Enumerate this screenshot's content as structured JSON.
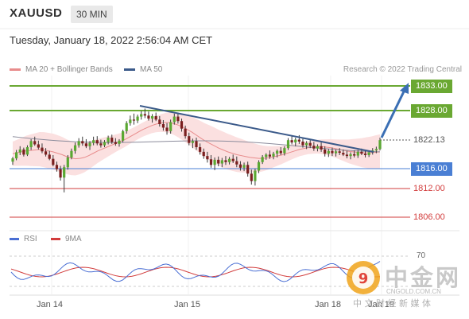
{
  "header": {
    "symbol": "XAUUSD",
    "timeframe": "30 MIN",
    "datetime": "Tuesday, January 18, 2022 2:56:04 AM CET"
  },
  "legend": {
    "ma20": {
      "label": "MA 20 + Bollinger Bands",
      "color": "#e88c8c"
    },
    "ma50": {
      "label": "MA 50",
      "color": "#3b5a8a"
    },
    "copyright": "Research © 2022 Trading Central"
  },
  "levels": [
    {
      "label": "1833.00",
      "value": 1833.0,
      "kind": "resistance",
      "color": "#6aa832"
    },
    {
      "label": "1828.00",
      "value": 1828.0,
      "kind": "resistance",
      "color": "#6aa832"
    },
    {
      "label": "1822.13",
      "value": 1822.13,
      "kind": "current",
      "color": "#555555"
    },
    {
      "label": "1816.00",
      "value": 1816.0,
      "kind": "pivot",
      "color": "#4a7fd4"
    },
    {
      "label": "1812.00",
      "value": 1812.0,
      "kind": "support",
      "color": "#d23c3c"
    },
    {
      "label": "1806.00",
      "value": 1806.0,
      "kind": "support",
      "color": "#d23c3c"
    }
  ],
  "rsi": {
    "rsi_label": "RSI",
    "rsi_color": "#4a6fd4",
    "ma_label": "9MA",
    "ma_color": "#d23c3c",
    "level_label": "70"
  },
  "x_axis": {
    "labels": [
      "Jan 14",
      "Jan 15",
      "Jan 18",
      "Jan 19"
    ]
  },
  "watermark": {
    "brand": "中金网",
    "domain": "CNGOLD.COM.CN",
    "tagline": "中 文 财 经 新 媒 体"
  },
  "chart_data": {
    "type": "candlestick",
    "symbol": "XAUUSD",
    "timeframe": "30 MIN",
    "price_range": [
      1803,
      1836
    ],
    "series_visual": [
      [
        1817.5,
        1818.5,
        1816.8,
        1818.2
      ],
      [
        1818.2,
        1820.0,
        1817.8,
        1819.5
      ],
      [
        1819.5,
        1820.8,
        1818.9,
        1820.1
      ],
      [
        1820.1,
        1820.5,
        1818.6,
        1819.0
      ],
      [
        1819.0,
        1821.0,
        1818.7,
        1820.6
      ],
      [
        1820.6,
        1822.3,
        1820.0,
        1821.9
      ],
      [
        1821.9,
        1822.8,
        1820.9,
        1821.2
      ],
      [
        1821.2,
        1822.0,
        1820.1,
        1820.5
      ],
      [
        1820.5,
        1821.4,
        1819.3,
        1819.7
      ],
      [
        1819.7,
        1820.4,
        1818.6,
        1819.0
      ],
      [
        1819.0,
        1819.8,
        1817.8,
        1818.1
      ],
      [
        1818.1,
        1818.9,
        1816.5,
        1816.8
      ],
      [
        1816.8,
        1817.5,
        1815.4,
        1815.9
      ],
      [
        1815.9,
        1816.6,
        1813.6,
        1814.2
      ],
      [
        1814.2,
        1816.8,
        1811.2,
        1816.3
      ],
      [
        1816.3,
        1818.9,
        1815.8,
        1818.4
      ],
      [
        1818.4,
        1820.3,
        1818.0,
        1819.8
      ],
      [
        1819.8,
        1821.6,
        1819.2,
        1821.0
      ],
      [
        1821.0,
        1822.5,
        1820.5,
        1821.9
      ],
      [
        1821.9,
        1822.8,
        1820.9,
        1821.4
      ],
      [
        1821.4,
        1822.3,
        1820.4,
        1820.8
      ],
      [
        1820.8,
        1821.9,
        1820.0,
        1821.5
      ],
      [
        1821.5,
        1822.8,
        1821.0,
        1822.1
      ],
      [
        1822.1,
        1822.9,
        1821.0,
        1821.4
      ],
      [
        1821.4,
        1822.2,
        1820.5,
        1821.0
      ],
      [
        1821.0,
        1822.1,
        1820.6,
        1821.7
      ],
      [
        1821.7,
        1823.0,
        1821.2,
        1822.6
      ],
      [
        1822.6,
        1823.2,
        1821.3,
        1821.7
      ],
      [
        1821.7,
        1822.5,
        1820.9,
        1821.3
      ],
      [
        1821.3,
        1822.3,
        1820.7,
        1822.0
      ],
      [
        1822.0,
        1824.2,
        1821.6,
        1823.9
      ],
      [
        1823.9,
        1825.9,
        1823.4,
        1825.5
      ],
      [
        1825.5,
        1827.0,
        1825.0,
        1826.2
      ],
      [
        1826.2,
        1827.4,
        1825.2,
        1826.0
      ],
      [
        1826.0,
        1827.2,
        1825.5,
        1826.8
      ],
      [
        1826.8,
        1827.9,
        1826.2,
        1827.3
      ],
      [
        1827.3,
        1828.4,
        1826.5,
        1827.0
      ],
      [
        1827.0,
        1827.8,
        1826.0,
        1826.4
      ],
      [
        1826.4,
        1827.3,
        1825.6,
        1826.9
      ],
      [
        1826.9,
        1827.6,
        1825.9,
        1826.2
      ],
      [
        1826.2,
        1826.9,
        1824.8,
        1825.3
      ],
      [
        1825.3,
        1826.1,
        1824.0,
        1824.6
      ],
      [
        1824.6,
        1825.5,
        1823.2,
        1823.9
      ],
      [
        1823.9,
        1826.2,
        1823.4,
        1825.7
      ],
      [
        1825.7,
        1827.4,
        1825.2,
        1826.8
      ],
      [
        1826.8,
        1827.6,
        1825.4,
        1825.9
      ],
      [
        1825.9,
        1826.4,
        1823.8,
        1824.4
      ],
      [
        1824.4,
        1825.0,
        1822.4,
        1822.9
      ],
      [
        1822.9,
        1823.6,
        1821.0,
        1821.5
      ],
      [
        1821.5,
        1822.4,
        1820.4,
        1821.9
      ],
      [
        1821.9,
        1822.6,
        1820.0,
        1820.6
      ],
      [
        1820.6,
        1821.4,
        1819.0,
        1819.6
      ],
      [
        1819.6,
        1820.3,
        1818.1,
        1818.7
      ],
      [
        1818.7,
        1819.6,
        1817.3,
        1818.0
      ],
      [
        1818.0,
        1818.9,
        1816.2,
        1816.8
      ],
      [
        1816.8,
        1818.4,
        1815.7,
        1817.9
      ],
      [
        1817.9,
        1818.6,
        1816.5,
        1817.1
      ],
      [
        1817.1,
        1818.3,
        1816.3,
        1817.8
      ],
      [
        1817.8,
        1818.7,
        1816.8,
        1817.4
      ],
      [
        1817.4,
        1818.5,
        1816.9,
        1818.1
      ],
      [
        1818.1,
        1819.0,
        1817.2,
        1817.6
      ],
      [
        1817.6,
        1818.6,
        1816.3,
        1816.9
      ],
      [
        1816.9,
        1817.6,
        1815.6,
        1816.2
      ],
      [
        1816.2,
        1817.3,
        1815.5,
        1816.8
      ],
      [
        1816.8,
        1817.5,
        1814.4,
        1815.0
      ],
      [
        1815.0,
        1815.8,
        1812.8,
        1813.5
      ],
      [
        1813.5,
        1816.0,
        1812.6,
        1815.6
      ],
      [
        1815.6,
        1817.8,
        1815.1,
        1817.4
      ],
      [
        1817.4,
        1818.9,
        1817.0,
        1818.5
      ],
      [
        1818.5,
        1819.3,
        1817.9,
        1819.0
      ],
      [
        1819.0,
        1819.9,
        1818.1,
        1818.6
      ],
      [
        1818.6,
        1819.6,
        1818.0,
        1819.2
      ],
      [
        1819.2,
        1820.1,
        1818.4,
        1819.8
      ],
      [
        1819.8,
        1820.6,
        1818.9,
        1819.3
      ],
      [
        1819.3,
        1820.8,
        1818.8,
        1820.4
      ],
      [
        1820.4,
        1822.5,
        1820.0,
        1822.1
      ],
      [
        1822.1,
        1823.0,
        1821.2,
        1821.6
      ],
      [
        1821.6,
        1822.6,
        1820.8,
        1822.2
      ],
      [
        1822.2,
        1823.1,
        1821.3,
        1821.8
      ],
      [
        1821.8,
        1822.4,
        1820.5,
        1821.0
      ],
      [
        1821.0,
        1821.9,
        1820.2,
        1821.5
      ],
      [
        1821.5,
        1822.2,
        1820.4,
        1820.9
      ],
      [
        1820.9,
        1821.7,
        1819.8,
        1820.3
      ],
      [
        1820.3,
        1821.2,
        1819.7,
        1820.8
      ],
      [
        1820.8,
        1821.6,
        1819.6,
        1820.1
      ],
      [
        1820.1,
        1820.8,
        1818.6,
        1819.2
      ],
      [
        1819.2,
        1820.2,
        1818.5,
        1819.8
      ],
      [
        1819.8,
        1820.5,
        1818.7,
        1819.3
      ],
      [
        1819.3,
        1820.1,
        1818.6,
        1819.7
      ],
      [
        1819.7,
        1820.4,
        1818.9,
        1819.4
      ],
      [
        1819.4,
        1820.1,
        1818.7,
        1819.0
      ],
      [
        1819.0,
        1819.8,
        1818.2,
        1818.7
      ],
      [
        1818.7,
        1819.5,
        1818.0,
        1819.1
      ],
      [
        1819.1,
        1819.9,
        1818.4,
        1818.8
      ],
      [
        1818.8,
        1820.0,
        1818.3,
        1819.6
      ],
      [
        1819.6,
        1820.3,
        1818.9,
        1819.2
      ],
      [
        1819.2,
        1819.9,
        1818.4,
        1818.9
      ],
      [
        1818.9,
        1819.8,
        1818.5,
        1819.5
      ],
      [
        1819.5,
        1820.4,
        1819.0,
        1819.9
      ],
      [
        1819.9,
        1820.7,
        1819.3,
        1820.2
      ],
      [
        1820.2,
        1822.6,
        1819.9,
        1822.1
      ]
    ],
    "channel_pixel_hint": "chart-only",
    "ma20": [
      1819.2,
      1819.4,
      1819.6,
      1819.8,
      1819.9,
      1820.0,
      1820.1,
      1820.0,
      1819.8,
      1819.6,
      1819.3,
      1819.0,
      1818.6,
      1818.3,
      1818.1,
      1818.2,
      1818.4,
      1818.8,
      1819.3,
      1819.8,
      1820.2,
      1820.6,
      1821.0,
      1821.4,
      1821.8,
      1822.2,
      1822.7,
      1823.2,
      1823.7,
      1824.2,
      1824.6,
      1825.0,
      1825.3,
      1825.5,
      1825.6,
      1825.6,
      1825.4,
      1825.1,
      1824.7,
      1824.2,
      1823.7,
      1823.1,
      1822.5,
      1821.9,
      1821.4,
      1820.9,
      1820.4,
      1820.0,
      1819.6,
      1819.3,
      1819.0,
      1818.8,
      1818.6,
      1818.4,
      1818.3,
      1818.2,
      1818.2,
      1818.3,
      1818.5,
      1818.7,
      1818.9,
      1819.2,
      1819.5,
      1819.8,
      1820.1,
      1820.3,
      1820.5,
      1820.6,
      1820.7,
      1820.7,
      1820.6,
      1820.5,
      1820.3,
      1820.1,
      1819.9,
      1819.7,
      1819.6,
      1819.5,
      1819.4,
      1819.4,
      1819.4,
      1819.5,
      1819.6
    ]
  }
}
